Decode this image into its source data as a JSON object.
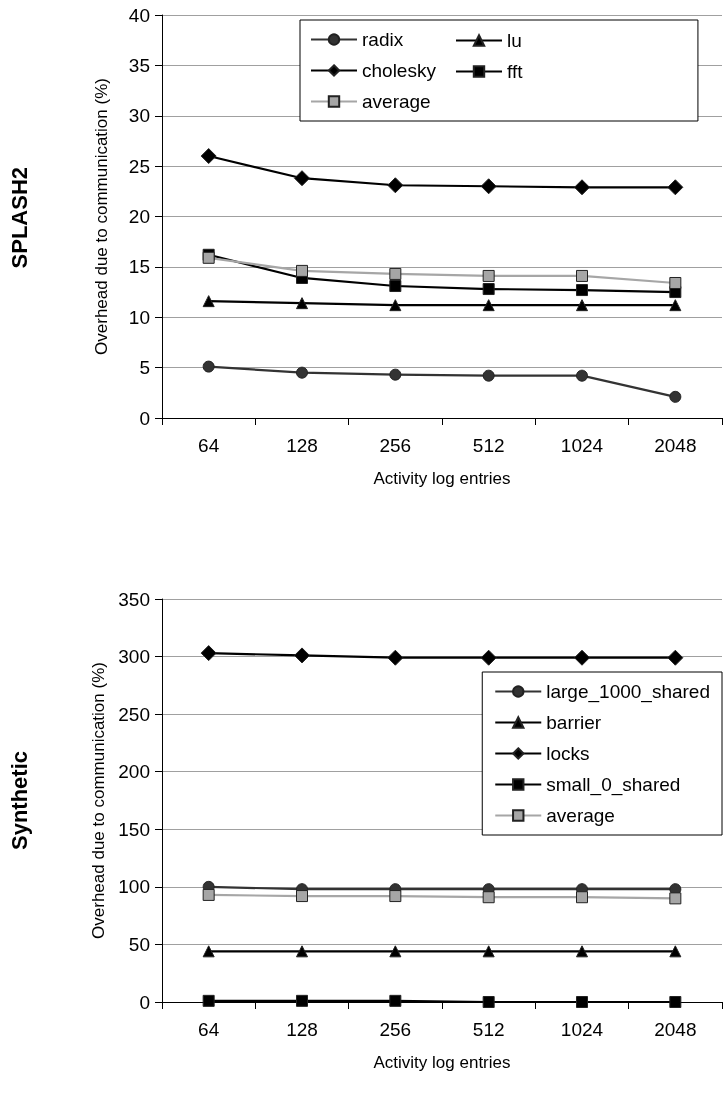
{
  "chart_data": [
    {
      "type": "line",
      "title": "SPLASH2",
      "xlabel": "Activity log entries",
      "ylabel": "Overhead due to communication (%)",
      "categories": [
        "64",
        "128",
        "256",
        "512",
        "1024",
        "2048"
      ],
      "ylim": [
        0,
        40
      ],
      "yticks": [
        0,
        5,
        10,
        15,
        20,
        25,
        30,
        35,
        40
      ],
      "grid": "y",
      "legend": "top right",
      "line_style": "solid",
      "series": [
        {
          "name": "radix",
          "color": "#333333",
          "marker": "circle",
          "values": [
            5.1,
            4.5,
            4.3,
            4.2,
            4.2,
            2.1
          ]
        },
        {
          "name": "lu",
          "color": "#000000",
          "marker": "triangle",
          "values": [
            11.6,
            11.4,
            11.2,
            11.2,
            11.2,
            11.2
          ]
        },
        {
          "name": "cholesky",
          "color": "#000000",
          "marker": "diamond",
          "values": [
            26,
            23.8,
            23.1,
            23,
            22.9,
            22.9
          ]
        },
        {
          "name": "fft",
          "color": "#000000",
          "marker": "square",
          "values": [
            16.2,
            13.9,
            13.1,
            12.8,
            12.7,
            12.5
          ]
        },
        {
          "name": "average",
          "color": "#a6a6a6",
          "marker": "square",
          "values": [
            15.9,
            14.6,
            14.3,
            14.1,
            14.1,
            13.4
          ]
        }
      ]
    },
    {
      "type": "line",
      "title": "Synthetic",
      "xlabel": "Activity log entries",
      "ylabel": "Overhead due to communication (%)",
      "categories": [
        "64",
        "128",
        "256",
        "512",
        "1024",
        "2048"
      ],
      "ylim": [
        0,
        350
      ],
      "yticks": [
        0,
        50,
        100,
        150,
        200,
        250,
        300,
        350
      ],
      "grid": "y",
      "legend": "right",
      "line_style": "solid",
      "series": [
        {
          "name": "large_1000_shared",
          "color": "#333333",
          "marker": "circle",
          "values": [
            100,
            98,
            98,
            98,
            98,
            98
          ]
        },
        {
          "name": "barrier",
          "color": "#000000",
          "marker": "triangle",
          "values": [
            44,
            44,
            44,
            44,
            44,
            44
          ]
        },
        {
          "name": "locks",
          "color": "#000000",
          "marker": "diamond",
          "values": [
            303,
            301,
            299,
            299,
            299,
            299
          ]
        },
        {
          "name": "small_0_shared",
          "color": "#000000",
          "marker": "square",
          "values": [
            1,
            1,
            1,
            0,
            0,
            0
          ]
        },
        {
          "name": "average",
          "color": "#a6a6a6",
          "marker": "square",
          "values": [
            93,
            92,
            92,
            91,
            91,
            90
          ]
        }
      ]
    }
  ]
}
